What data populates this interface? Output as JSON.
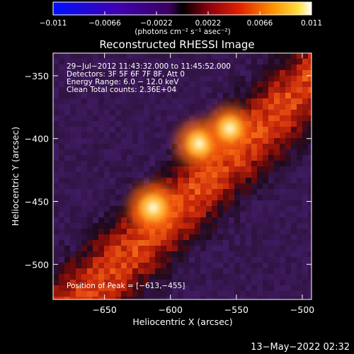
{
  "chart_data": {
    "type": "heatmap",
    "title": "Reconstructed RHESSI Image",
    "xlabel": "Heliocentric X (arcsec)",
    "ylabel": "Heliocentric Y (arcsec)",
    "xlim": [
      -689,
      -493
    ],
    "ylim": [
      -528,
      -332
    ],
    "x_ticks": [
      -650,
      -600,
      -550,
      -500
    ],
    "x_tick_labels": [
      "−650",
      "−600",
      "−550",
      "−500"
    ],
    "y_ticks": [
      -350,
      -400,
      -450,
      -500
    ],
    "y_tick_labels": [
      "−350",
      "−400",
      "−450",
      "−500"
    ],
    "info_lines": [
      "29−Jul−2012 11:43:32.000 to 11:45:52.000",
      "Detectors: 3F 5F 6F 7F 8F, Att 0",
      "Energy Range: 6.0 − 12.0 keV",
      "Clean    Total counts: 2.36E+04"
    ],
    "peak_label": "Position of Peak = [−613,−455]",
    "peak": [
      -613,
      -455
    ],
    "sources": [
      {
        "x": -613,
        "y": -455,
        "peak": 0.011
      },
      {
        "x": -578,
        "y": -404,
        "peak": 0.0095
      },
      {
        "x": -555,
        "y": -392,
        "peak": 0.008
      }
    ],
    "colorbar": {
      "min": -0.011,
      "max": 0.011,
      "tick_labels": [
        "−0.011",
        "−0.0066",
        "−0.0022",
        "0.0022",
        "0.0066",
        "0.011"
      ],
      "unit_label": "(photons cm⁻² s⁻¹ asec⁻²)",
      "colormap": "blue-purple-red-yellow-white"
    }
  },
  "footer": {
    "date": "13−May−2022 02:32"
  },
  "colors": {
    "background": "#000000",
    "text": "#ffffff"
  }
}
